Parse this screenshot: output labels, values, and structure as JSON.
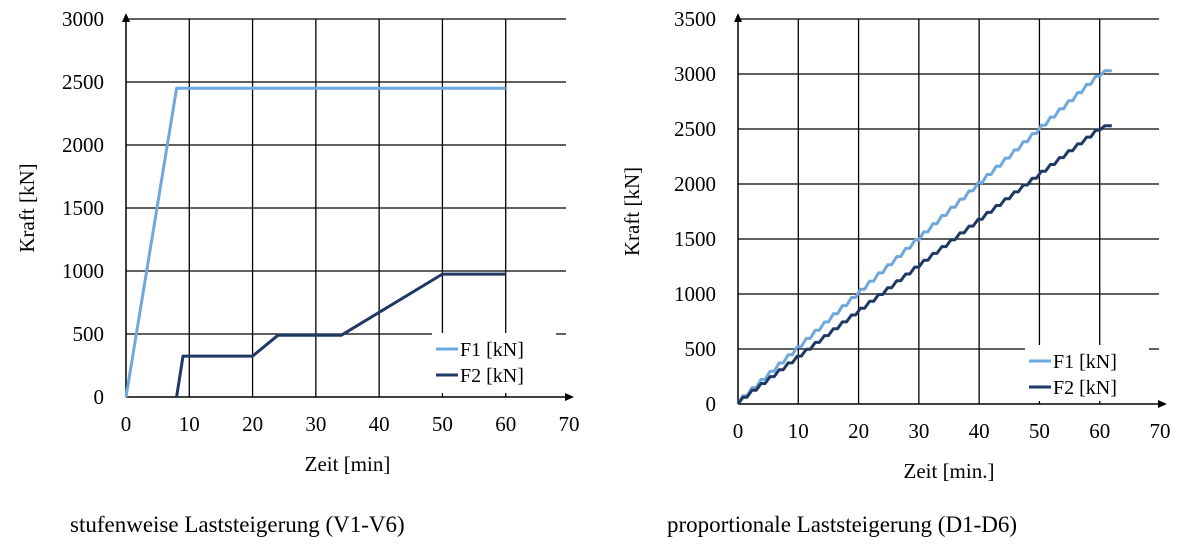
{
  "chart_data": [
    {
      "type": "line",
      "xlabel": "Zeit [min]",
      "ylabel": "Kraft [kN]",
      "xlim": [
        0,
        70
      ],
      "ylim": [
        0,
        3000
      ],
      "xticks": [
        "0",
        "10",
        "20",
        "30",
        "40",
        "50",
        "60",
        "70"
      ],
      "yticks": [
        "0",
        "500",
        "1000",
        "1500",
        "2000",
        "2500",
        "3000"
      ],
      "grid": true,
      "legend_position": "bottom-right",
      "caption": "stufenweise Laststeigerung (V1-V6)",
      "series": [
        {
          "name": "F1 [kN]",
          "color": "#6fa8dc",
          "x": [
            0,
            8,
            60
          ],
          "y": [
            0,
            2450,
            2450
          ]
        },
        {
          "name": "F2 [kN]",
          "color": "#1f3864",
          "x": [
            8,
            9,
            20,
            24,
            34,
            50,
            60
          ],
          "y": [
            0,
            325,
            325,
            490,
            490,
            975,
            975
          ]
        }
      ]
    },
    {
      "type": "line",
      "xlabel": "Zeit [min.]",
      "ylabel": "Kraft [kN]",
      "xlim": [
        0,
        70
      ],
      "ylim": [
        0,
        3500
      ],
      "xticks": [
        "0",
        "10",
        "20",
        "30",
        "40",
        "50",
        "60",
        "70"
      ],
      "yticks": [
        "0",
        "500",
        "1000",
        "1500",
        "2000",
        "2500",
        "3000",
        "3500"
      ],
      "grid": true,
      "legend_position": "bottom-right",
      "caption": "proportionale Laststeigerung (D1-D6)",
      "series": [
        {
          "name": "F1 [kN]",
          "color": "#6fa8dc",
          "x": [
            0,
            61,
            62
          ],
          "y": [
            0,
            3030,
            3030
          ],
          "stepped": true,
          "step_minutes": 1.5
        },
        {
          "name": "F2 [kN]",
          "color": "#1f3864",
          "x": [
            0,
            61,
            62
          ],
          "y": [
            0,
            2530,
            2530
          ],
          "stepped": true,
          "step_minutes": 1.5
        }
      ]
    }
  ]
}
